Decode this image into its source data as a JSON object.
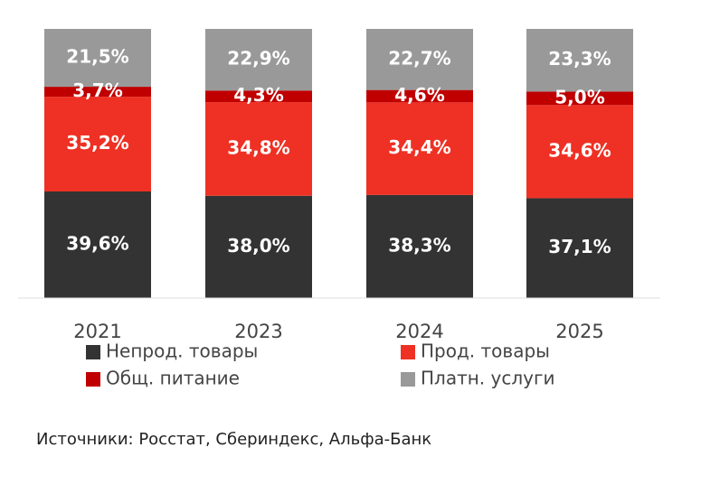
{
  "chart_data": {
    "type": "stacked-bar",
    "categories": [
      "2021",
      "2023",
      "2024",
      "2025"
    ],
    "ylim": [
      0,
      100
    ],
    "series": [
      {
        "name": "Непрод. товары",
        "color": "#333333",
        "values": [
          39.6,
          38.0,
          38.3,
          37.1
        ],
        "value_labels": [
          "39,6%",
          "38,0%",
          "38,3%",
          "37,1%"
        ]
      },
      {
        "name": "Прод. товары",
        "color": "#ee3124",
        "values": [
          35.2,
          34.8,
          34.4,
          34.6
        ],
        "value_labels": [
          "35,2%",
          "34,8%",
          "34,4%",
          "34,6%"
        ]
      },
      {
        "name": "Общ. питание",
        "color": "#c00000",
        "values": [
          3.7,
          4.3,
          4.6,
          5.0
        ],
        "value_labels": [
          "3,7%",
          "4,3%",
          "4,6%",
          "5,0%"
        ]
      },
      {
        "name": "Платн. услуги",
        "color": "#999999",
        "values": [
          21.5,
          22.9,
          22.7,
          23.3
        ],
        "value_labels": [
          "21,5%",
          "22,9%",
          "22,7%",
          "23,3%"
        ]
      }
    ],
    "source": "Источники: Росстат, Сбериндекс, Альфа-Банк"
  }
}
